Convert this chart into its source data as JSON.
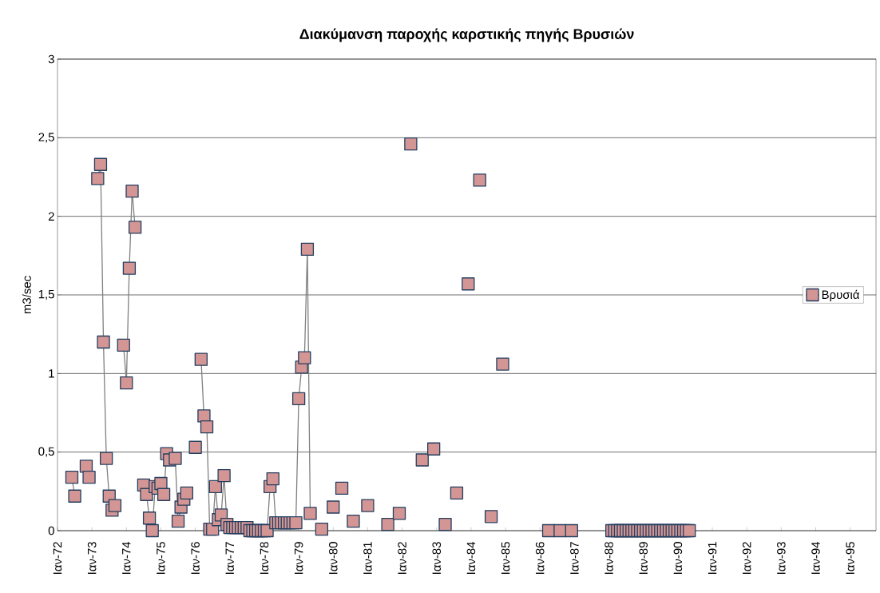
{
  "chart_data": {
    "type": "line",
    "title": "Διακύμανση παροχής καρστικής πηγής Βρυσιών",
    "ylabel": "m3/sec",
    "xlim": [
      "1972-01",
      "1995-10"
    ],
    "xticks": [
      {
        "value": "1972-01",
        "label": "Ιαν-72"
      },
      {
        "value": "1973-01",
        "label": "Ιαν-73"
      },
      {
        "value": "1974-01",
        "label": "Ιαν-74"
      },
      {
        "value": "1975-01",
        "label": "Ιαν-75"
      },
      {
        "value": "1976-01",
        "label": "Ιαν-76"
      },
      {
        "value": "1977-01",
        "label": "Ιαν-77"
      },
      {
        "value": "1978-01",
        "label": "Ιαν-78"
      },
      {
        "value": "1979-01",
        "label": "Ιαν-79"
      },
      {
        "value": "1980-01",
        "label": "Ιαν-80"
      },
      {
        "value": "1981-01",
        "label": "Ιαν-81"
      },
      {
        "value": "1982-01",
        "label": "Ιαν-82"
      },
      {
        "value": "1983-01",
        "label": "Ιαν-83"
      },
      {
        "value": "1984-01",
        "label": "Ιαν-84"
      },
      {
        "value": "1985-01",
        "label": "Ιαν-85"
      },
      {
        "value": "1986-01",
        "label": "Ιαν-86"
      },
      {
        "value": "1987-01",
        "label": "Ιαν-87"
      },
      {
        "value": "1988-01",
        "label": "Ιαν-88"
      },
      {
        "value": "1989-01",
        "label": "Ιαν-89"
      },
      {
        "value": "1990-01",
        "label": "Ιαν-90"
      },
      {
        "value": "1991-01",
        "label": "Ιαν-91"
      },
      {
        "value": "1992-01",
        "label": "Ιαν-92"
      },
      {
        "value": "1993-01",
        "label": "Ιαν-93"
      },
      {
        "value": "1994-01",
        "label": "Ιαν-94"
      },
      {
        "value": "1995-01",
        "label": "Ιαν-95"
      }
    ],
    "ylim": [
      0,
      3
    ],
    "yticks": [
      0,
      {
        "value": 0.5,
        "label": "0,5"
      },
      1,
      {
        "value": 1.5,
        "label": "1,5"
      },
      2,
      {
        "value": 2.5,
        "label": "2,5"
      },
      3
    ],
    "grid": "y",
    "legend": "right",
    "marker": "square",
    "line_style": "solid",
    "series": [
      {
        "name": "Βρυσιά",
        "color": "#d49694",
        "x": [
          "1972-06",
          "1972-07",
          "1972-09",
          "1972-11",
          "1972-12",
          "1973-01",
          "1973-03",
          "1973-04",
          "1973-05",
          "1973-06",
          "1973-07",
          "1973-08",
          "1973-09",
          "1973-10",
          "1973-12",
          "1974-01",
          "1974-02",
          "1974-03",
          "1974-04",
          "1974-05",
          "1974-07",
          "1974-08",
          "1974-09",
          "1974-10",
          "1974-11",
          "1974-12",
          "1975-01",
          "1975-02",
          "1975-03",
          "1975-04",
          "1975-06",
          "1975-07",
          "1975-08",
          "1975-09",
          "1975-10",
          "1975-11",
          "1976-01",
          "1976-02",
          "1976-03",
          "1976-04",
          "1976-05",
          "1976-06",
          "1976-07",
          "1976-08",
          "1976-09",
          "1976-10",
          "1976-11",
          "1976-12",
          "1977-01",
          "1977-02",
          "1977-03",
          "1977-04",
          "1977-05",
          "1977-06",
          "1977-07",
          "1977-08",
          "1977-09",
          "1977-10",
          "1977-11",
          "1977-12",
          "1978-01",
          "1978-02",
          "1978-03",
          "1978-04",
          "1978-05",
          "1978-06",
          "1978-07",
          "1978-08",
          "1978-09",
          "1978-10",
          "1978-11",
          "1978-12",
          "1979-01",
          "1979-02",
          "1979-03",
          "1979-04",
          "1979-05",
          "1979-07",
          "1979-09",
          "1979-11",
          "1980-01",
          "1980-02",
          "1980-04",
          "1980-06",
          "1980-08",
          "1980-10",
          "1981-01",
          "1981-04",
          "1981-08",
          "1981-10",
          "1981-12",
          "1982-02",
          "1982-04",
          "1982-06",
          "1982-08",
          "1982-10",
          "1982-12",
          "1983-02",
          "1983-04",
          "1983-06",
          "1983-08",
          "1983-10",
          "1983-12",
          "1984-02",
          "1984-04",
          "1984-06",
          "1984-08",
          "1984-10",
          "1984-12",
          "1985-06",
          "1986-04",
          "1986-06",
          "1986-08",
          "1986-10",
          "1986-12",
          "1987-06",
          "1988-02",
          "1988-03",
          "1988-04",
          "1988-05",
          "1988-06",
          "1988-07",
          "1988-08",
          "1988-09",
          "1988-10",
          "1988-11",
          "1988-12",
          "1989-01",
          "1989-02",
          "1989-03",
          "1989-04",
          "1989-05",
          "1989-06",
          "1989-07",
          "1989-08",
          "1989-09",
          "1989-10",
          "1989-11",
          "1989-12",
          "1990-01",
          "1990-02",
          "1990-03",
          "1990-04",
          "1990-05"
        ],
        "values": [
          0.34,
          0.22,
          null,
          0.41,
          0.34,
          null,
          2.24,
          2.33,
          1.2,
          0.46,
          0.22,
          0.13,
          0.16,
          null,
          1.18,
          0.94,
          1.67,
          2.16,
          1.93,
          null,
          0.29,
          0.23,
          0.08,
          0,
          0.28,
          0.27,
          0.3,
          0.23,
          0.49,
          0.45,
          0.46,
          0.06,
          0.15,
          0.2,
          0.24,
          null,
          0.53,
          null,
          1.09,
          0.73,
          0.66,
          0.01,
          0.01,
          0.28,
          0.07,
          0.1,
          0.35,
          0.04,
          0.02,
          0.02,
          0.02,
          0.02,
          0.02,
          0.02,
          0.02,
          0,
          0,
          0,
          0,
          0,
          0,
          0,
          0.28,
          0.33,
          0.05,
          0.05,
          0.05,
          0.05,
          0.05,
          0.05,
          0.05,
          0.05,
          0.84,
          1.04,
          1.1,
          1.79,
          0.11,
          null,
          0.01,
          null,
          0.15,
          null,
          0.27,
          null,
          0.06,
          null,
          0.16,
          null,
          0.04,
          null,
          0.11,
          null,
          2.46,
          null,
          0.45,
          null,
          0.52,
          null,
          0.04,
          null,
          0.24,
          null,
          1.57,
          null,
          2.23,
          null,
          0.09,
          null,
          1.06,
          null,
          0,
          null,
          0,
          null,
          0,
          null,
          0,
          0,
          0,
          0,
          0,
          0,
          0,
          0,
          0,
          0,
          0,
          0,
          0,
          0,
          0,
          0,
          0,
          0,
          0,
          0,
          0,
          0,
          0,
          0,
          0,
          0,
          0,
          0
        ]
      }
    ]
  }
}
